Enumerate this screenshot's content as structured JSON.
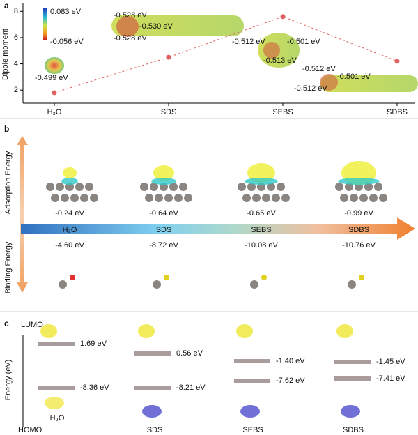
{
  "panels": [
    "a",
    "b",
    "c"
  ],
  "chart_data": {
    "type": "line",
    "y_label": "Dipole moment",
    "categories": [
      "H₂O",
      "SDS",
      "SEBS",
      "SDBS"
    ],
    "values": [
      1.8,
      4.5,
      7.6,
      4.2
    ],
    "color": "#e06060",
    "ylim": [
      1,
      8.6
    ],
    "yticks": [
      2,
      4,
      6,
      8
    ],
    "colorbar": {
      "max": "0.083 eV",
      "min": "-0.056 eV"
    },
    "annotations": [
      "-0.499 eV",
      "-0.528 eV",
      "-0.530 eV",
      "-0.528 eV",
      "-0.512 eV",
      "-0.501 eV",
      "-0.513 eV",
      "-0.512 eV",
      "-0.501 eV",
      "-0.512 eV"
    ]
  },
  "panel_b": {
    "adsorption_label": "Adsorption Energy",
    "binding_label": "Binding Energy",
    "molecules": [
      "H₂O",
      "SDS",
      "SEBS",
      "SDBS"
    ],
    "adsorption": [
      "-0.24 eV",
      "-0.64 eV",
      "-0.65 eV",
      "-0.99 eV"
    ],
    "binding": [
      "-4.60 eV",
      "-8.72 eV",
      "-10.08 eV",
      "-10.76 eV"
    ]
  },
  "panel_c": {
    "axis_label": "Energy (eV)",
    "top": "LUMO",
    "bottom": "HOMO",
    "molecules": [
      "H₂O",
      "SDS",
      "SEBS",
      "SDBS"
    ],
    "lumo": [
      "1.69 eV",
      "0.56 eV",
      "-1.40 eV",
      "-1.45 eV"
    ],
    "homo": [
      "-8.36 eV",
      "-8.21 eV",
      "-7.62 eV",
      "-7.41 eV"
    ]
  }
}
